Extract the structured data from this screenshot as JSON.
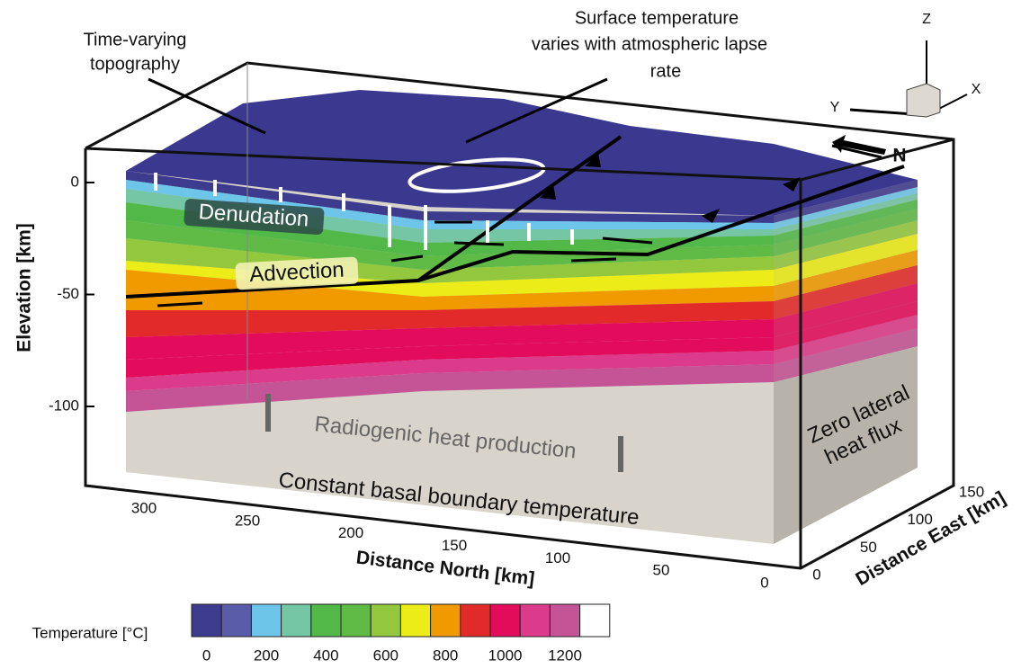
{
  "annotations": {
    "topography": [
      "Time-varying",
      "topography"
    ],
    "surface_temperature": [
      "Surface temperature",
      "varies with atmospheric lapse",
      "rate"
    ],
    "denudation": "Denudation",
    "advection": "Advection",
    "radiogenic": "Radiogenic heat production",
    "basal": "Constant basal boundary temperature",
    "lateral": [
      "Zero lateral",
      "heat flux"
    ]
  },
  "axes": {
    "elevation": {
      "label": "Elevation [km]",
      "ticks": [
        0,
        -50,
        -100
      ]
    },
    "north": {
      "label": "Distance North [km]",
      "ticks": [
        300,
        250,
        200,
        150,
        100,
        50,
        0
      ]
    },
    "east": {
      "label": "Distance East [km]",
      "ticks": [
        0,
        50,
        100,
        150
      ]
    },
    "orientation": {
      "z": "Z",
      "y": "Y",
      "x": "X",
      "north_arrow": "N"
    }
  },
  "colorbar": {
    "label": "Temperature [°C]",
    "colors": [
      "#3d3b8e",
      "#5a5caa",
      "#6dc5ea",
      "#74c6a4",
      "#52b848",
      "#5fba46",
      "#93c83e",
      "#ecec18",
      "#f09a00",
      "#e32a2a",
      "#e30b5c",
      "#dc3a8a",
      "#c45496",
      "#ffffff"
    ],
    "ticks": [
      0,
      200,
      400,
      600,
      800,
      1000,
      1200
    ]
  }
}
